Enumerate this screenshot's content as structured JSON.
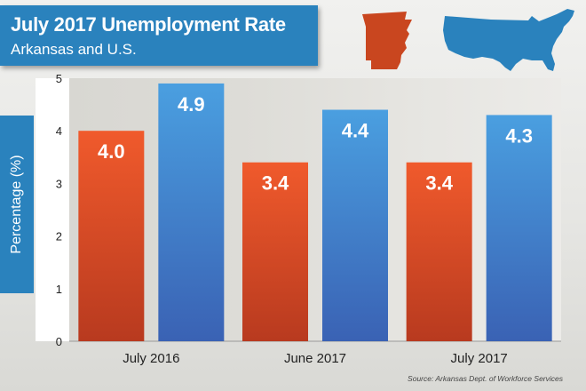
{
  "header": {
    "title": "July 2017 Unemployment Rate",
    "subtitle": "Arkansas and U.S."
  },
  "icons": {
    "arkansas": "arkansas-map-icon",
    "us": "us-map-icon"
  },
  "colors": {
    "arkansas": "#e8502a",
    "us": "#3f8fd6",
    "accent": "#2a82bd"
  },
  "source": "Source: Arkansas Dept. of Workforce Services",
  "chart_data": {
    "type": "bar",
    "title": "July 2017 Unemployment Rate",
    "subtitle": "Arkansas and U.S.",
    "xlabel": "",
    "ylabel": "Percentage (%)",
    "ylim": [
      0,
      5
    ],
    "yticks": [
      0,
      1,
      2,
      3,
      4,
      5
    ],
    "grid": false,
    "legend": "none",
    "categories": [
      "July 2016",
      "June 2017",
      "July 2017"
    ],
    "series": [
      {
        "values": [
          4.0,
          3.4,
          3.4
        ],
        "labels": [
          "4.0",
          "3.4",
          "3.4"
        ],
        "color": "#e8502a"
      },
      {
        "values": [
          4.9,
          4.4,
          4.3
        ],
        "labels": [
          "4.9",
          "4.4",
          "4.3"
        ],
        "color": "#3f8fd6"
      }
    ]
  }
}
